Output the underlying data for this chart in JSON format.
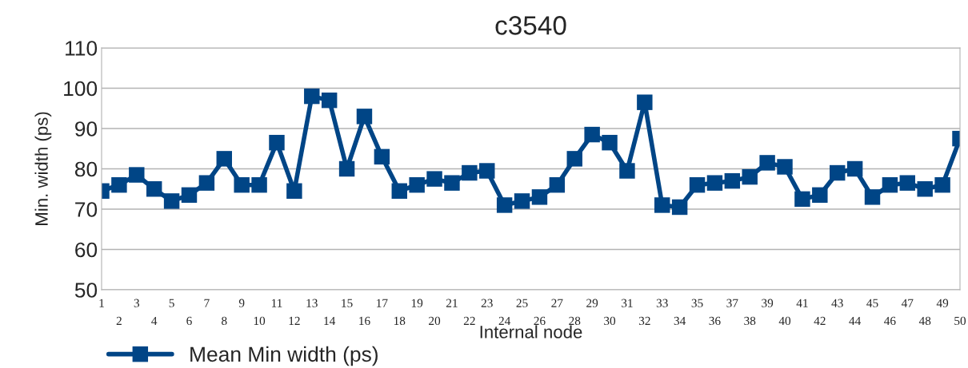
{
  "chart_data": {
    "type": "line",
    "title": "c3540",
    "xlabel": "Internal node",
    "ylabel": "Min. width (ps)",
    "categories": [
      "1",
      "2",
      "3",
      "4",
      "5",
      "6",
      "7",
      "8",
      "9",
      "10",
      "11",
      "12",
      "13",
      "14",
      "15",
      "16",
      "17",
      "18",
      "19",
      "20",
      "21",
      "22",
      "23",
      "24",
      "25",
      "26",
      "27",
      "28",
      "29",
      "30",
      "31",
      "32",
      "33",
      "34",
      "35",
      "36",
      "37",
      "38",
      "39",
      "40",
      "41",
      "42",
      "43",
      "44",
      "45",
      "46",
      "47",
      "48",
      "49",
      "50"
    ],
    "series": [
      {
        "name": "Mean Min width (ps)",
        "color": "#004586",
        "values": [
          74.5,
          76,
          78.5,
          75,
          72,
          73.5,
          76.5,
          82.5,
          76,
          76,
          86.5,
          74.5,
          98,
          97,
          80,
          93,
          83,
          74.5,
          76,
          77.5,
          76.5,
          79,
          79.5,
          71,
          72,
          73,
          76,
          82.5,
          88.5,
          86.5,
          79.5,
          96.5,
          71,
          70.5,
          76,
          76.5,
          77,
          78,
          81.5,
          80.5,
          72.5,
          73.5,
          79,
          80,
          73,
          76,
          76.5,
          75,
          76,
          87.5
        ]
      }
    ],
    "ylim": [
      50,
      110
    ],
    "yticks": [
      50,
      60,
      70,
      80,
      90,
      100,
      110
    ],
    "grid": "y",
    "legend": "bottom left",
    "marker": "square",
    "line_style": "solid"
  }
}
